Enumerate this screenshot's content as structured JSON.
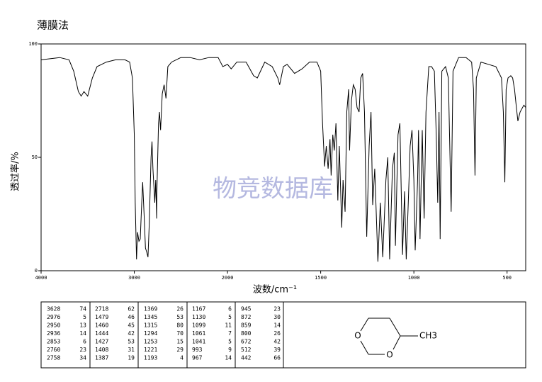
{
  "chart_data": {
    "type": "line",
    "title": "薄膜法",
    "xlabel": "波数/cm⁻¹",
    "ylabel": "透过率/%",
    "watermark": "物竞数据库",
    "xlim": [
      4000,
      400
    ],
    "xticks": [
      4000,
      3000,
      2000,
      1500,
      1000,
      500
    ],
    "ylim": [
      0,
      100
    ],
    "yticks": [
      0,
      50,
      100
    ],
    "x": [
      4000,
      3800,
      3700,
      3650,
      3600,
      3570,
      3540,
      3500,
      3450,
      3400,
      3300,
      3200,
      3100,
      3050,
      3020,
      3000,
      2990,
      2976,
      2965,
      2950,
      2936,
      2920,
      2910,
      2895,
      2880,
      2865,
      2853,
      2840,
      2820,
      2810,
      2800,
      2780,
      2770,
      2760,
      2758,
      2740,
      2730,
      2718,
      2700,
      2680,
      2660,
      2640,
      2600,
      2500,
      2400,
      2300,
      2200,
      2100,
      2050,
      2000,
      1980,
      1950,
      1900,
      1860,
      1840,
      1800,
      1760,
      1730,
      1720,
      1700,
      1680,
      1640,
      1600,
      1560,
      1520,
      1500,
      1490,
      1479,
      1470,
      1460,
      1450,
      1444,
      1435,
      1427,
      1418,
      1408,
      1400,
      1387,
      1380,
      1369,
      1360,
      1350,
      1345,
      1335,
      1325,
      1315,
      1305,
      1294,
      1285,
      1275,
      1265,
      1253,
      1240,
      1230,
      1221,
      1210,
      1193,
      1180,
      1167,
      1150,
      1140,
      1130,
      1115,
      1105,
      1099,
      1085,
      1075,
      1061,
      1050,
      1041,
      1030,
      1020,
      1010,
      1000,
      993,
      980,
      975,
      967,
      955,
      945,
      935,
      920,
      905,
      890,
      880,
      872,
      865,
      859,
      850,
      830,
      815,
      800,
      790,
      760,
      720,
      690,
      680,
      672,
      665,
      640,
      600,
      560,
      530,
      520,
      512,
      505,
      495,
      480,
      470,
      460,
      450,
      442,
      430,
      410,
      400
    ],
    "series": [
      {
        "color": "#000000",
        "values": [
          93,
          94,
          93,
          88,
          79,
          77,
          79,
          77,
          85,
          90,
          92,
          93,
          93,
          92,
          85,
          60,
          30,
          5,
          17,
          13,
          14,
          30,
          39,
          25,
          10,
          8,
          6,
          20,
          50,
          57,
          45,
          30,
          40,
          23,
          34,
          65,
          70,
          62,
          78,
          82,
          76,
          90,
          92,
          94,
          94,
          93,
          94,
          94,
          90,
          91,
          89,
          92,
          92,
          86,
          85,
          92,
          90,
          85,
          82,
          90,
          91,
          87,
          89,
          92,
          92,
          88,
          65,
          46,
          55,
          45,
          58,
          42,
          60,
          53,
          65,
          31,
          55,
          19,
          40,
          26,
          70,
          80,
          53,
          75,
          82,
          80,
          72,
          70,
          85,
          87,
          70,
          15,
          55,
          70,
          29,
          45,
          4,
          30,
          6,
          40,
          50,
          5,
          45,
          52,
          11,
          60,
          65,
          7,
          35,
          5,
          30,
          55,
          62,
          40,
          9,
          40,
          62,
          14,
          62,
          23,
          70,
          90,
          90,
          88,
          60,
          30,
          70,
          14,
          88,
          90,
          85,
          26,
          88,
          94,
          94,
          92,
          80,
          42,
          85,
          92,
          91,
          90,
          85,
          70,
          39,
          80,
          85,
          86,
          85,
          80,
          72,
          66,
          70,
          73,
          72
        ]
      }
    ]
  },
  "peak_table": [
    [
      [
        3628,
        74
      ],
      [
        2976,
        5
      ],
      [
        2950,
        13
      ],
      [
        2936,
        14
      ],
      [
        2853,
        6
      ],
      [
        2760,
        23
      ],
      [
        2758,
        34
      ]
    ],
    [
      [
        2718,
        62
      ],
      [
        1479,
        46
      ],
      [
        1460,
        45
      ],
      [
        1444,
        42
      ],
      [
        1427,
        53
      ],
      [
        1408,
        31
      ],
      [
        1387,
        19
      ]
    ],
    [
      [
        1369,
        26
      ],
      [
        1345,
        53
      ],
      [
        1315,
        80
      ],
      [
        1294,
        70
      ],
      [
        1253,
        15
      ],
      [
        1221,
        29
      ],
      [
        1193,
        4
      ]
    ],
    [
      [
        1167,
        6
      ],
      [
        1130,
        5
      ],
      [
        1099,
        11
      ],
      [
        1061,
        7
      ],
      [
        1041,
        5
      ],
      [
        993,
        9
      ],
      [
        967,
        14
      ]
    ],
    [
      [
        945,
        23
      ],
      [
        872,
        30
      ],
      [
        859,
        14
      ],
      [
        800,
        26
      ],
      [
        672,
        42
      ],
      [
        512,
        39
      ],
      [
        442,
        66
      ]
    ]
  ],
  "structure": {
    "atoms": [
      "O",
      "O",
      "CH3"
    ]
  }
}
